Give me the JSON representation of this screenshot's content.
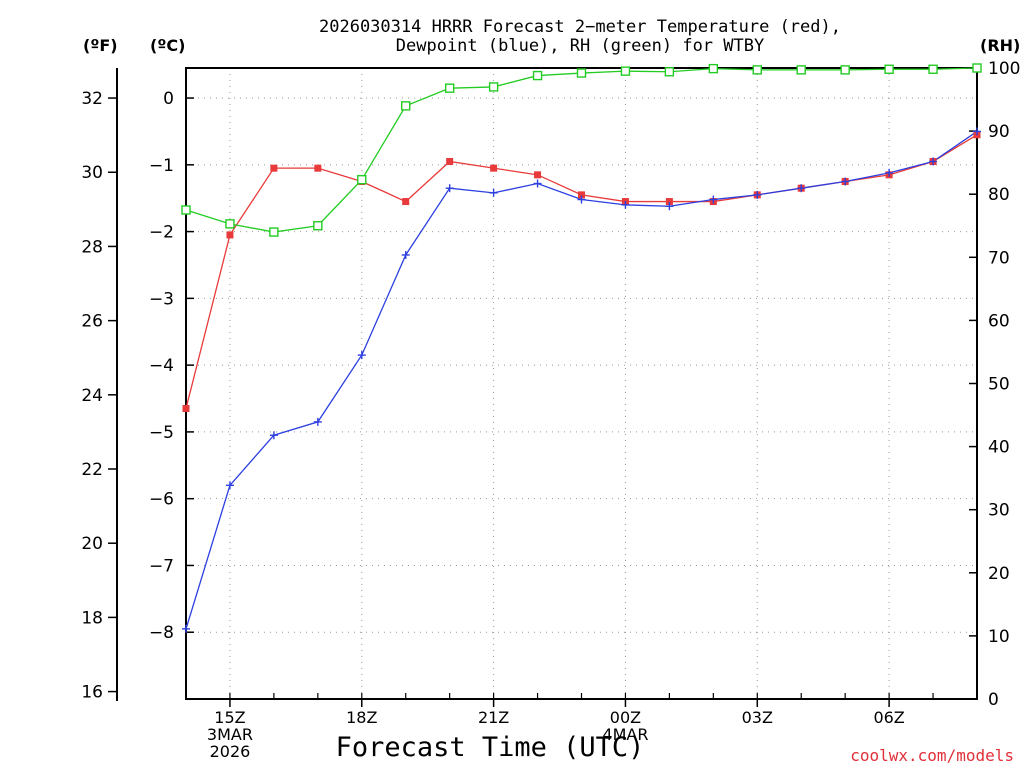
{
  "title_line1": "2026030314 HRRR Forecast 2−meter Temperature (red),",
  "title_line2": "Dewpoint (blue), RH (green) for WTBY",
  "unit_f": "(ºF)",
  "unit_c": "(ºC)",
  "unit_rh": "(RH)",
  "xlabel": "Forecast Time (UTC)",
  "credit": "coolwx.com/models",
  "colors": {
    "temperature": "#e83a3a",
    "dewpoint": "#2c3fe0",
    "rh": "#22cc22"
  },
  "chart_data": {
    "type": "line",
    "title": "2026030314 HRRR Forecast 2−meter Temperature (red), Dewpoint (blue), RH (green) for WTBY",
    "x": [
      14,
      15,
      16,
      17,
      18,
      19,
      20,
      21,
      22,
      23,
      0,
      1,
      2,
      3,
      4,
      5,
      6,
      7,
      8
    ],
    "x_ticks": [
      {
        "hour_index": 1,
        "lines": [
          "15Z",
          "3MAR",
          "2026"
        ]
      },
      {
        "hour_index": 4,
        "lines": [
          "18Z"
        ]
      },
      {
        "hour_index": 7,
        "lines": [
          "21Z"
        ]
      },
      {
        "hour_index": 10,
        "lines": [
          "00Z",
          "4MAR"
        ]
      },
      {
        "hour_index": 13,
        "lines": [
          "03Z"
        ]
      },
      {
        "hour_index": 16,
        "lines": [
          "06Z"
        ]
      }
    ],
    "xlabel": "Forecast Time (UTC)",
    "y_left_celsius": {
      "range": [
        -9.0,
        0.45
      ],
      "ticks": [
        0,
        -1,
        -2,
        -3,
        -4,
        -5,
        -6,
        -7,
        -8
      ],
      "tick_labels": [
        "0",
        "−1",
        "−2",
        "−3",
        "−4",
        "−5",
        "−6",
        "−7",
        "−8"
      ]
    },
    "y_left_fahrenheit": {
      "ticks": [
        32,
        30,
        28,
        26,
        24,
        22,
        20,
        18,
        16
      ],
      "tick_labels": [
        "32",
        "30",
        "28",
        "26",
        "24",
        "22",
        "20",
        "18",
        "16"
      ]
    },
    "y_right_rh": {
      "range": [
        0,
        100
      ],
      "ticks": [
        0,
        10,
        20,
        30,
        40,
        50,
        60,
        70,
        80,
        90,
        100
      ],
      "tick_labels": [
        "0",
        "10",
        "20",
        "30",
        "40",
        "50",
        "60",
        "70",
        "80",
        "90",
        "100"
      ]
    },
    "grid": true,
    "series": [
      {
        "name": "Temperature",
        "axis": "celsius",
        "color": "#e83a3a",
        "marker": "filled-square",
        "values": [
          -4.65,
          -2.05,
          -1.05,
          -1.05,
          -1.25,
          -1.55,
          -0.95,
          -1.05,
          -1.15,
          -1.45,
          -1.55,
          -1.55,
          -1.55,
          -1.45,
          -1.35,
          -1.25,
          -1.15,
          -0.95,
          -0.55
        ]
      },
      {
        "name": "Dewpoint",
        "axis": "celsius",
        "color": "#2c3fe0",
        "marker": "plus",
        "values": [
          -7.95,
          -5.8,
          -5.05,
          -4.85,
          -3.85,
          -2.35,
          -1.35,
          -1.42,
          -1.28,
          -1.52,
          -1.6,
          -1.62,
          -1.52,
          -1.45,
          -1.35,
          -1.25,
          -1.12,
          -0.95,
          -0.5
        ]
      },
      {
        "name": "RH",
        "axis": "rh",
        "color": "#22cc22",
        "marker": "open-square",
        "values": [
          77.5,
          75.3,
          74,
          75,
          82.3,
          94,
          96.8,
          97,
          98.8,
          99.2,
          99.5,
          99.4,
          99.9,
          99.7,
          99.7,
          99.7,
          99.8,
          99.8,
          100
        ]
      }
    ]
  }
}
